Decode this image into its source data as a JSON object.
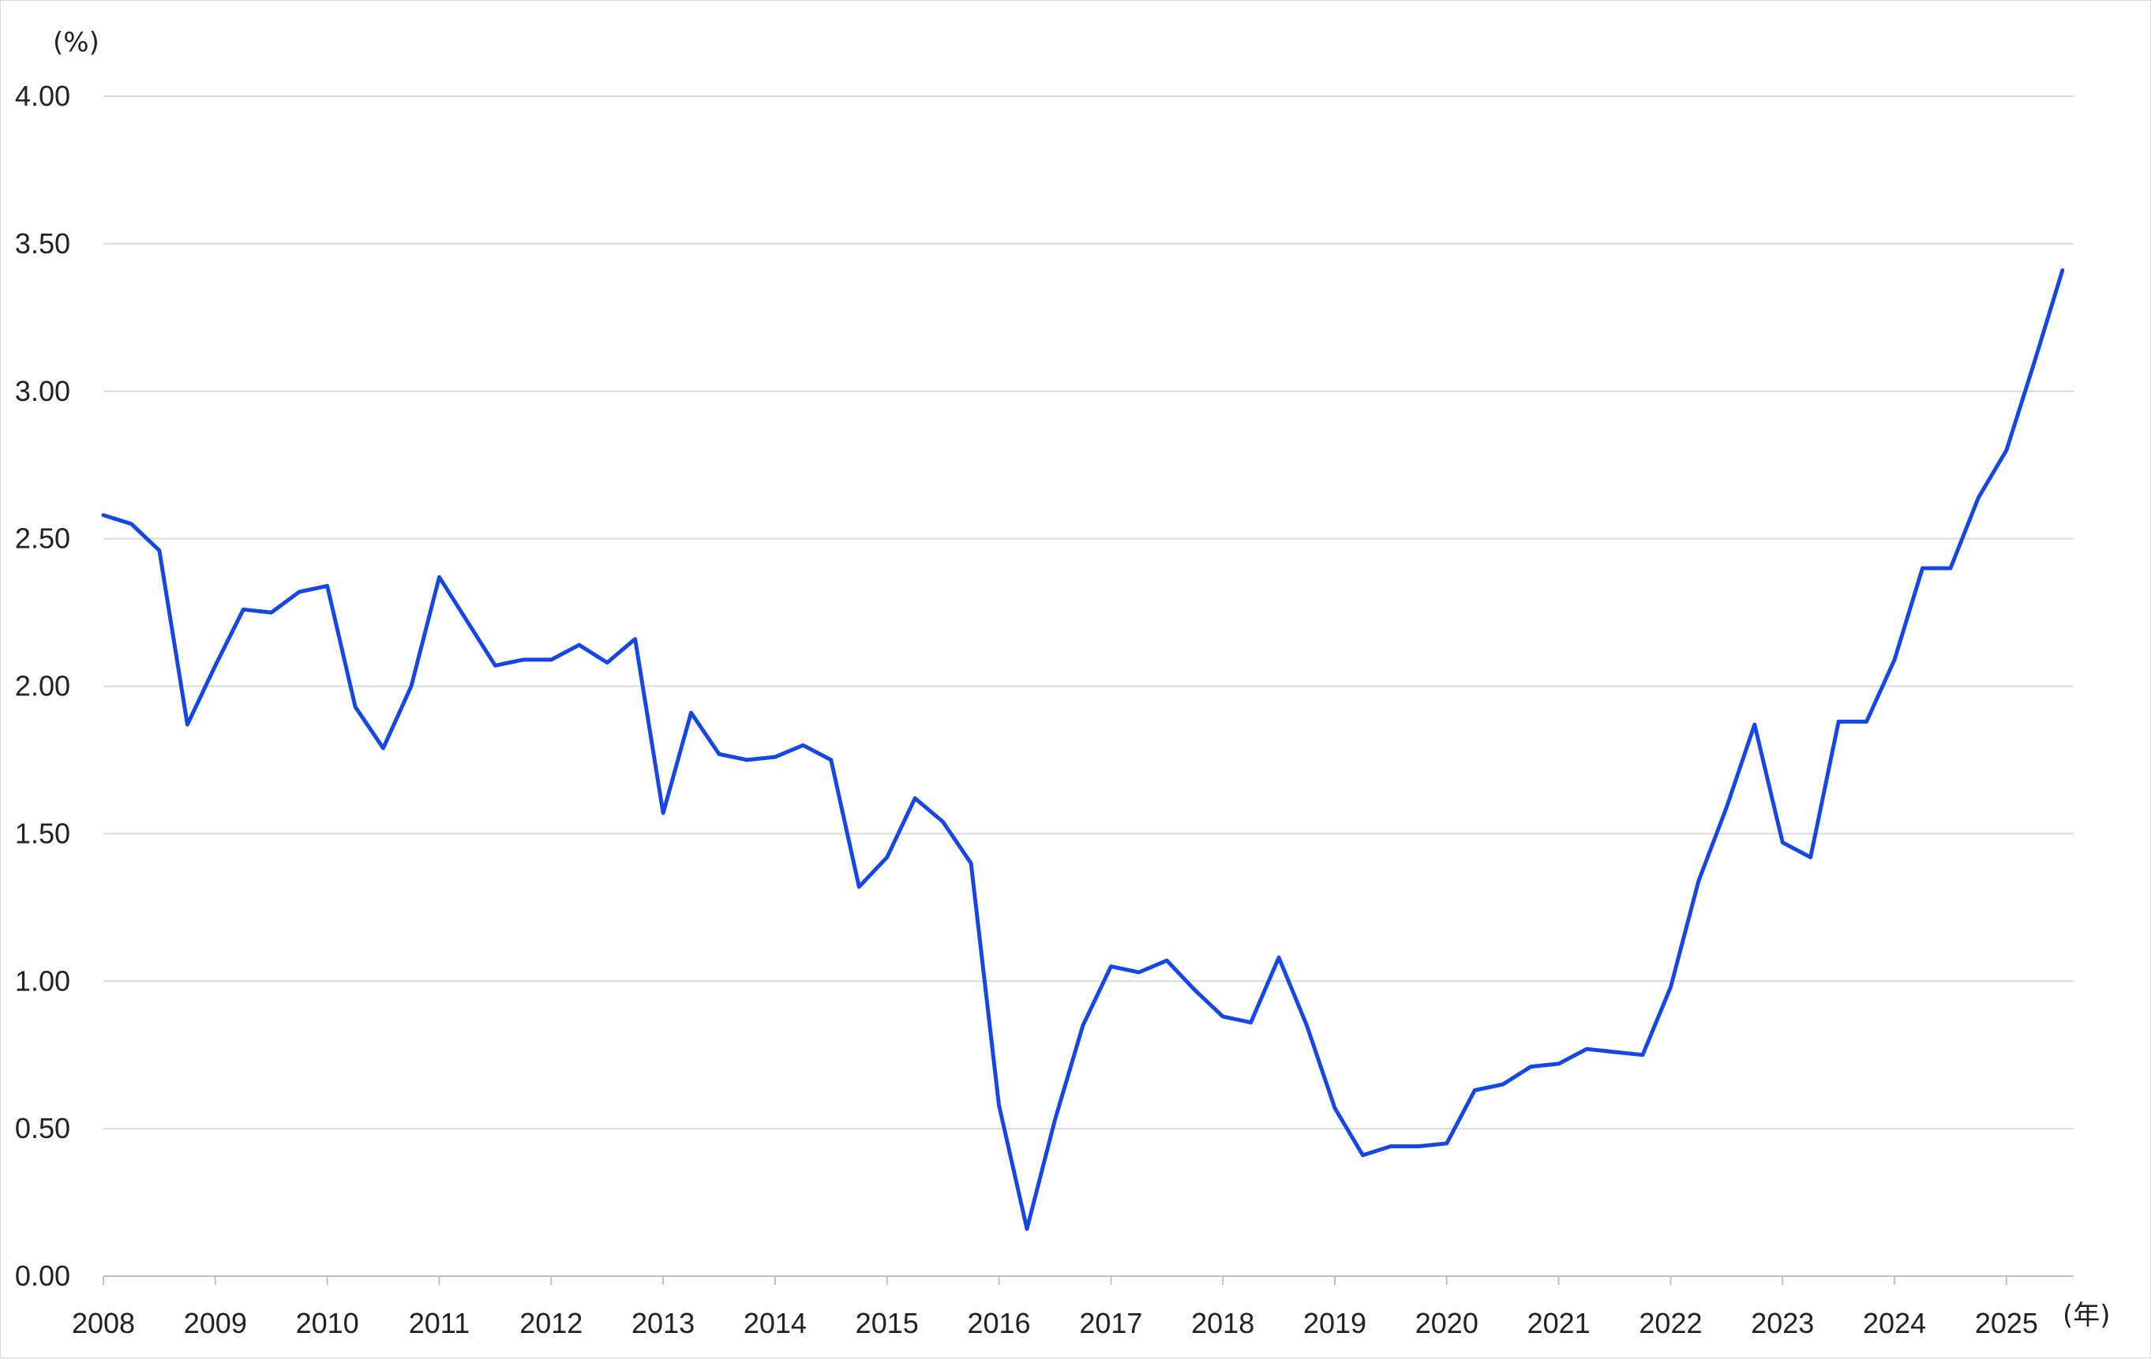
{
  "chart_data": {
    "type": "line",
    "title": "",
    "ylabel": "(%)",
    "xlabel": "(年)",
    "ylim": [
      0,
      4
    ],
    "xlim": [
      2008,
      2025.6
    ],
    "grid": true,
    "legend": "none",
    "y_ticks": [
      "0.00",
      "0.50",
      "1.00",
      "1.50",
      "2.00",
      "2.50",
      "3.00",
      "3.50",
      "4.00"
    ],
    "x_ticks": [
      "2008",
      "2009",
      "2010",
      "2011",
      "2012",
      "2013",
      "2014",
      "2015",
      "2016",
      "2017",
      "2018",
      "2019",
      "2020",
      "2021",
      "2022",
      "2023",
      "2024",
      "2025"
    ],
    "colors": {
      "line": "#1447e6",
      "grid": "#d9d9d9",
      "axis": "#bfbfbf"
    },
    "series": [
      {
        "x": [
          2008,
          2008.25,
          2008.5,
          2008.75,
          2009,
          2009.25,
          2009.5,
          2009.75,
          2010,
          2010.25,
          2010.5,
          2010.75,
          2011,
          2011.25,
          2011.5,
          2011.75,
          2012,
          2012.25,
          2012.5,
          2012.75,
          2013,
          2013.25,
          2013.5,
          2013.75,
          2014,
          2014.25,
          2014.5,
          2014.75,
          2015,
          2015.25,
          2015.5,
          2015.75,
          2016,
          2016.25,
          2016.5,
          2016.75,
          2017,
          2017.25,
          2017.5,
          2017.75,
          2018,
          2018.25,
          2018.5,
          2018.75,
          2019,
          2019.25,
          2019.5,
          2019.75,
          2020,
          2020.25,
          2020.5,
          2020.75,
          2021,
          2021.25,
          2021.5,
          2021.75,
          2022,
          2022.25,
          2022.5,
          2022.75,
          2023,
          2023.25,
          2023.5,
          2023.75,
          2024,
          2024.25,
          2024.5,
          2024.75,
          2025,
          2025.25,
          2025.5
        ],
        "values": [
          2.58,
          2.55,
          2.46,
          1.87,
          2.07,
          2.26,
          2.25,
          2.32,
          2.34,
          1.93,
          1.79,
          2.0,
          2.37,
          2.22,
          2.07,
          2.09,
          2.09,
          2.14,
          2.08,
          2.16,
          1.57,
          1.91,
          1.77,
          1.75,
          1.76,
          1.8,
          1.75,
          1.32,
          1.42,
          1.62,
          1.54,
          1.4,
          0.58,
          0.16,
          0.53,
          0.85,
          1.05,
          1.03,
          1.07,
          0.97,
          0.88,
          0.86,
          1.08,
          0.85,
          0.57,
          0.41,
          0.44,
          0.44,
          0.45,
          0.63,
          0.65,
          0.71,
          0.72,
          0.77,
          0.76,
          0.75,
          0.98,
          1.34,
          1.59,
          1.87,
          1.47,
          1.42,
          1.88,
          1.88,
          2.09,
          2.4,
          2.4,
          2.64,
          2.8,
          3.1,
          3.41
        ]
      }
    ]
  }
}
